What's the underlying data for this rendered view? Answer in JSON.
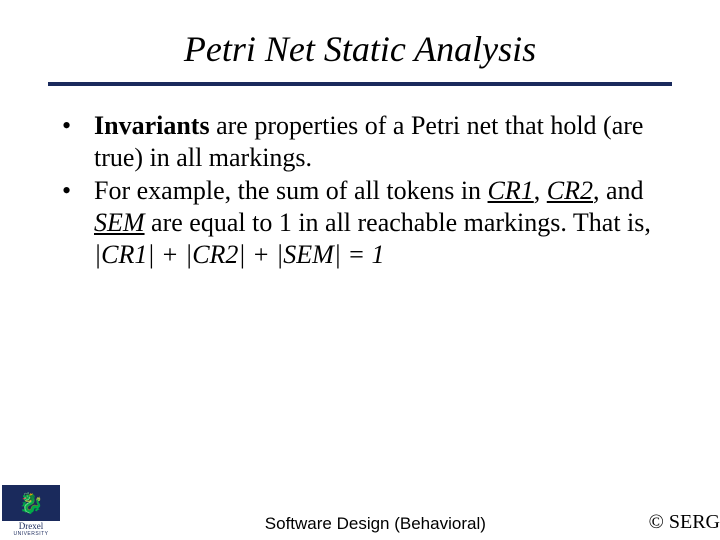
{
  "title": "Petri Net Static Analysis",
  "bullets": {
    "b1": {
      "lead": "Invariants",
      "rest": " are properties of a Petri net that hold (are true) in all markings."
    },
    "b2": {
      "pre": "For example, the sum of all tokens in ",
      "cr1": "CR1",
      "mid1": ", ",
      "cr2": "CR2",
      "mid2": ", and ",
      "sem": "SEM",
      "post": " are equal to 1 in all reachable markings.  That is,"
    }
  },
  "equation": "|CR1| + |CR2| + |SEM| = 1",
  "logo": {
    "name": "Drexel",
    "sub": "UNIVERSITY"
  },
  "footer": {
    "center": "Software Design (Behavioral)",
    "right": "© SERG"
  },
  "colors": {
    "divider": "#1a2a5c",
    "logo_bg": "#1a2a5c",
    "logo_dragon": "#d4a017",
    "text": "#000000",
    "background": "#ffffff"
  },
  "typography": {
    "title_fontsize": 36,
    "body_fontsize": 26,
    "footer_center_fontsize": 17,
    "footer_right_fontsize": 20
  }
}
